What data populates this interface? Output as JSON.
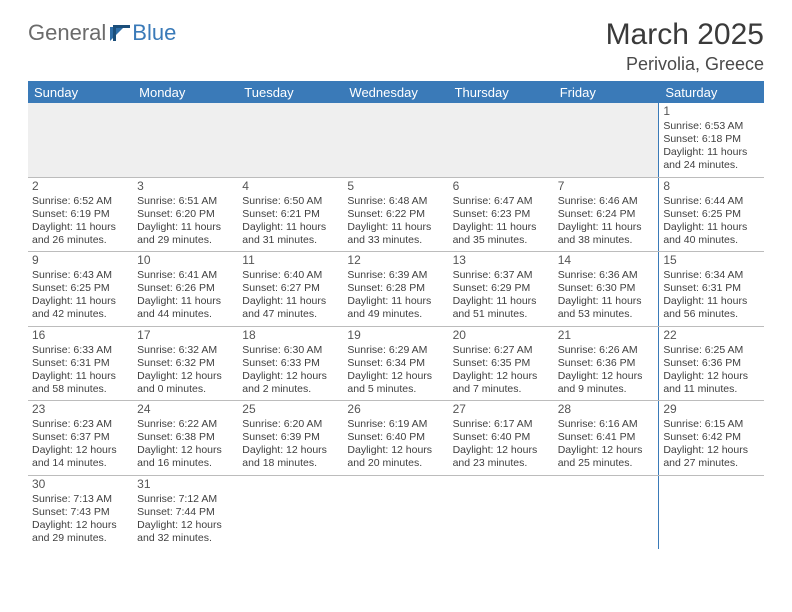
{
  "header": {
    "logo_general": "General",
    "logo_blue": "Blue",
    "month_year": "March 2025",
    "location": "Perivolia, Greece"
  },
  "colors": {
    "header_bg": "#3a7ab8",
    "header_text": "#ffffff",
    "body_text": "#404040",
    "grid_line": "#bcbcbc",
    "spacer_bg": "#efefef",
    "logo_gray": "#6b6b6b",
    "logo_blue": "#3a7ab8"
  },
  "weekdays": [
    "Sunday",
    "Monday",
    "Tuesday",
    "Wednesday",
    "Thursday",
    "Friday",
    "Saturday"
  ],
  "weeks": [
    [
      null,
      null,
      null,
      null,
      null,
      null,
      {
        "d": "1",
        "sr": "Sunrise: 6:53 AM",
        "ss": "Sunset: 6:18 PM",
        "dl1": "Daylight: 11 hours",
        "dl2": "and 24 minutes."
      }
    ],
    [
      {
        "d": "2",
        "sr": "Sunrise: 6:52 AM",
        "ss": "Sunset: 6:19 PM",
        "dl1": "Daylight: 11 hours",
        "dl2": "and 26 minutes."
      },
      {
        "d": "3",
        "sr": "Sunrise: 6:51 AM",
        "ss": "Sunset: 6:20 PM",
        "dl1": "Daylight: 11 hours",
        "dl2": "and 29 minutes."
      },
      {
        "d": "4",
        "sr": "Sunrise: 6:50 AM",
        "ss": "Sunset: 6:21 PM",
        "dl1": "Daylight: 11 hours",
        "dl2": "and 31 minutes."
      },
      {
        "d": "5",
        "sr": "Sunrise: 6:48 AM",
        "ss": "Sunset: 6:22 PM",
        "dl1": "Daylight: 11 hours",
        "dl2": "and 33 minutes."
      },
      {
        "d": "6",
        "sr": "Sunrise: 6:47 AM",
        "ss": "Sunset: 6:23 PM",
        "dl1": "Daylight: 11 hours",
        "dl2": "and 35 minutes."
      },
      {
        "d": "7",
        "sr": "Sunrise: 6:46 AM",
        "ss": "Sunset: 6:24 PM",
        "dl1": "Daylight: 11 hours",
        "dl2": "and 38 minutes."
      },
      {
        "d": "8",
        "sr": "Sunrise: 6:44 AM",
        "ss": "Sunset: 6:25 PM",
        "dl1": "Daylight: 11 hours",
        "dl2": "and 40 minutes."
      }
    ],
    [
      {
        "d": "9",
        "sr": "Sunrise: 6:43 AM",
        "ss": "Sunset: 6:25 PM",
        "dl1": "Daylight: 11 hours",
        "dl2": "and 42 minutes."
      },
      {
        "d": "10",
        "sr": "Sunrise: 6:41 AM",
        "ss": "Sunset: 6:26 PM",
        "dl1": "Daylight: 11 hours",
        "dl2": "and 44 minutes."
      },
      {
        "d": "11",
        "sr": "Sunrise: 6:40 AM",
        "ss": "Sunset: 6:27 PM",
        "dl1": "Daylight: 11 hours",
        "dl2": "and 47 minutes."
      },
      {
        "d": "12",
        "sr": "Sunrise: 6:39 AM",
        "ss": "Sunset: 6:28 PM",
        "dl1": "Daylight: 11 hours",
        "dl2": "and 49 minutes."
      },
      {
        "d": "13",
        "sr": "Sunrise: 6:37 AM",
        "ss": "Sunset: 6:29 PM",
        "dl1": "Daylight: 11 hours",
        "dl2": "and 51 minutes."
      },
      {
        "d": "14",
        "sr": "Sunrise: 6:36 AM",
        "ss": "Sunset: 6:30 PM",
        "dl1": "Daylight: 11 hours",
        "dl2": "and 53 minutes."
      },
      {
        "d": "15",
        "sr": "Sunrise: 6:34 AM",
        "ss": "Sunset: 6:31 PM",
        "dl1": "Daylight: 11 hours",
        "dl2": "and 56 minutes."
      }
    ],
    [
      {
        "d": "16",
        "sr": "Sunrise: 6:33 AM",
        "ss": "Sunset: 6:31 PM",
        "dl1": "Daylight: 11 hours",
        "dl2": "and 58 minutes."
      },
      {
        "d": "17",
        "sr": "Sunrise: 6:32 AM",
        "ss": "Sunset: 6:32 PM",
        "dl1": "Daylight: 12 hours",
        "dl2": "and 0 minutes."
      },
      {
        "d": "18",
        "sr": "Sunrise: 6:30 AM",
        "ss": "Sunset: 6:33 PM",
        "dl1": "Daylight: 12 hours",
        "dl2": "and 2 minutes."
      },
      {
        "d": "19",
        "sr": "Sunrise: 6:29 AM",
        "ss": "Sunset: 6:34 PM",
        "dl1": "Daylight: 12 hours",
        "dl2": "and 5 minutes."
      },
      {
        "d": "20",
        "sr": "Sunrise: 6:27 AM",
        "ss": "Sunset: 6:35 PM",
        "dl1": "Daylight: 12 hours",
        "dl2": "and 7 minutes."
      },
      {
        "d": "21",
        "sr": "Sunrise: 6:26 AM",
        "ss": "Sunset: 6:36 PM",
        "dl1": "Daylight: 12 hours",
        "dl2": "and 9 minutes."
      },
      {
        "d": "22",
        "sr": "Sunrise: 6:25 AM",
        "ss": "Sunset: 6:36 PM",
        "dl1": "Daylight: 12 hours",
        "dl2": "and 11 minutes."
      }
    ],
    [
      {
        "d": "23",
        "sr": "Sunrise: 6:23 AM",
        "ss": "Sunset: 6:37 PM",
        "dl1": "Daylight: 12 hours",
        "dl2": "and 14 minutes."
      },
      {
        "d": "24",
        "sr": "Sunrise: 6:22 AM",
        "ss": "Sunset: 6:38 PM",
        "dl1": "Daylight: 12 hours",
        "dl2": "and 16 minutes."
      },
      {
        "d": "25",
        "sr": "Sunrise: 6:20 AM",
        "ss": "Sunset: 6:39 PM",
        "dl1": "Daylight: 12 hours",
        "dl2": "and 18 minutes."
      },
      {
        "d": "26",
        "sr": "Sunrise: 6:19 AM",
        "ss": "Sunset: 6:40 PM",
        "dl1": "Daylight: 12 hours",
        "dl2": "and 20 minutes."
      },
      {
        "d": "27",
        "sr": "Sunrise: 6:17 AM",
        "ss": "Sunset: 6:40 PM",
        "dl1": "Daylight: 12 hours",
        "dl2": "and 23 minutes."
      },
      {
        "d": "28",
        "sr": "Sunrise: 6:16 AM",
        "ss": "Sunset: 6:41 PM",
        "dl1": "Daylight: 12 hours",
        "dl2": "and 25 minutes."
      },
      {
        "d": "29",
        "sr": "Sunrise: 6:15 AM",
        "ss": "Sunset: 6:42 PM",
        "dl1": "Daylight: 12 hours",
        "dl2": "and 27 minutes."
      }
    ],
    [
      {
        "d": "30",
        "sr": "Sunrise: 7:13 AM",
        "ss": "Sunset: 7:43 PM",
        "dl1": "Daylight: 12 hours",
        "dl2": "and 29 minutes."
      },
      {
        "d": "31",
        "sr": "Sunrise: 7:12 AM",
        "ss": "Sunset: 7:44 PM",
        "dl1": "Daylight: 12 hours",
        "dl2": "and 32 minutes."
      },
      null,
      null,
      null,
      null,
      null
    ]
  ]
}
